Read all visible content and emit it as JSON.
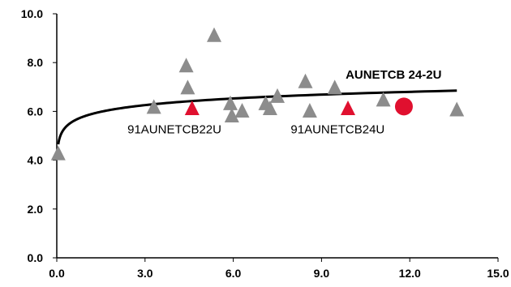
{
  "chart_data": {
    "type": "scatter",
    "title": "",
    "xlabel": "",
    "ylabel": "",
    "xlim": [
      0,
      15
    ],
    "ylim": [
      0,
      10
    ],
    "x_ticks": [
      0,
      3,
      6,
      9,
      12,
      15
    ],
    "y_ticks": [
      0,
      2,
      4,
      6,
      8,
      10
    ],
    "x_tick_labels": [
      "0.0",
      "3.0",
      "6.0",
      "9.0",
      "12.0",
      "15.0"
    ],
    "y_tick_labels": [
      "0.0",
      "2.0",
      "4.0",
      "6.0",
      "8.0",
      "10.0"
    ],
    "grid": false,
    "colors": {
      "gray": "#8c8c8c",
      "highlight": "#e0102f",
      "trend": "#000000"
    },
    "series": [
      {
        "marker": "triangle",
        "color": "#8c8c8c",
        "points": [
          {
            "x": 0.05,
            "y": 4.25
          },
          {
            "x": 3.3,
            "y": 6.15
          },
          {
            "x": 4.4,
            "y": 7.85
          },
          {
            "x": 4.45,
            "y": 6.95
          },
          {
            "x": 5.35,
            "y": 9.1
          },
          {
            "x": 5.9,
            "y": 6.3
          },
          {
            "x": 5.95,
            "y": 5.8
          },
          {
            "x": 6.3,
            "y": 6.0
          },
          {
            "x": 7.1,
            "y": 6.3
          },
          {
            "x": 7.25,
            "y": 6.1
          },
          {
            "x": 7.5,
            "y": 6.6
          },
          {
            "x": 8.45,
            "y": 7.2
          },
          {
            "x": 8.6,
            "y": 6.0
          },
          {
            "x": 9.45,
            "y": 6.95
          },
          {
            "x": 11.1,
            "y": 6.45
          },
          {
            "x": 13.6,
            "y": 6.05
          }
        ]
      },
      {
        "marker": "triangle",
        "color": "#e0102f",
        "points": [
          {
            "x": 4.6,
            "y": 6.1
          },
          {
            "x": 9.9,
            "y": 6.1
          }
        ]
      },
      {
        "marker": "circle",
        "color": "#e0102f",
        "points": [
          {
            "x": 11.8,
            "y": 6.2
          }
        ]
      },
      {
        "type": "trendline",
        "form": "logarithmic",
        "name": "AUNETCB 24-2U",
        "x_range": [
          0.05,
          13.6
        ],
        "y_at_start": 4.65,
        "y_at_end": 6.85
      }
    ],
    "annotations": [
      {
        "id": "label-22u",
        "text": "91AUNETCB22U",
        "x": 4.0,
        "y": 5.1
      },
      {
        "id": "label-24u",
        "text": "91AUNETCB24U",
        "x": 9.55,
        "y": 5.1
      },
      {
        "id": "label-trend",
        "text": "AUNETCB 24-2U",
        "x": 11.45,
        "y": 7.35
      }
    ]
  }
}
